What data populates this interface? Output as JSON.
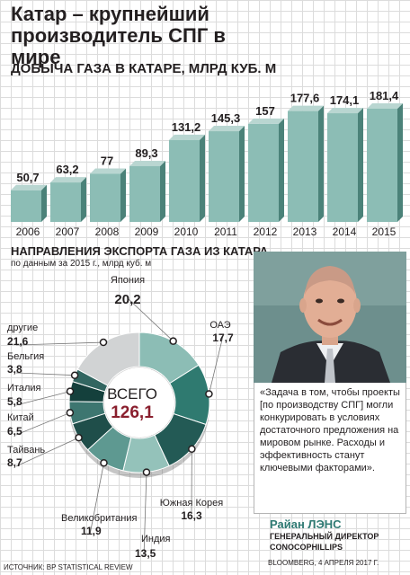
{
  "header": {
    "title": "Катар – крупнейший производитель СПГ в мире"
  },
  "production": {
    "subtitle": "ДОБЫЧА ГАЗА В КАТАРЕ, МЛРД КУБ. М"
  },
  "exports": {
    "subtitle": "НАПРАВЛЕНИЯ ЭКСПОРТА ГАЗА ИЗ КАТАРА",
    "note": "по данным за 2015 г., млрд куб. м"
  },
  "quote": {
    "text": "«Задача в том, чтобы проекты [по производству СПГ] могли конкурировать  в условиях достаточного предложения на мировом рынке. Расходы и эффективность станут ключевыми факторами».",
    "author_name": "Райан ЛЭНС",
    "author_position": "ГЕНЕРАЛЬНЫЙ ДИРЕКТОР",
    "author_org": "CONOCOPHILLIPS",
    "source": "BLOOMBERG, 4 АПРЕЛЯ 2017 Г."
  },
  "footer": {
    "source": "ИСТОЧНИК: BP STATISTICAL REVIEW"
  },
  "colors": {
    "bar": "#8cbdb5",
    "bar_top": "#b9d6d1",
    "bar_side": "#4b8279",
    "accent": "#2f7a73",
    "total": "#8a1f2e"
  },
  "chart_data": [
    {
      "type": "bar",
      "categories": [
        "2006",
        "2007",
        "2008",
        "2009",
        "2010",
        "2011",
        "2012",
        "2013",
        "2014",
        "2015"
      ],
      "values": [
        50.7,
        63.2,
        77,
        89.3,
        131.2,
        145.3,
        157,
        177.6,
        174.1,
        181.4
      ],
      "value_labels": [
        "50,7",
        "63,2",
        "77",
        "89,3",
        "131,2",
        "145,3",
        "157",
        "177,6",
        "174,1",
        "181,4"
      ],
      "title": "ДОБЫЧА ГАЗА В КАТАРЕ, МЛРД КУБ. М",
      "xlabel": "",
      "ylabel": "",
      "ylim": [
        0,
        190
      ],
      "grid": true
    },
    {
      "type": "pie",
      "title": "НАПРАВЛЕНИЯ ЭКСПОРТА ГАЗА ИЗ КАТАРА",
      "total_label": "ВСЕГО",
      "total_value_label": "126,1",
      "total": 126.1,
      "slices": [
        {
          "name": "Япония",
          "value": 20.2,
          "label": "20,2",
          "color": "#8cbdb5"
        },
        {
          "name": "ОАЭ",
          "value": 17.7,
          "label": "17,7",
          "color": "#2f7a70"
        },
        {
          "name": "Южная Корея",
          "value": 16.3,
          "label": "16,3",
          "color": "#235a55"
        },
        {
          "name": "Индия",
          "value": 13.5,
          "label": "13,5",
          "color": "#94c2ba"
        },
        {
          "name": "Великобритания",
          "value": 11.9,
          "label": "11,9",
          "color": "#5e9991"
        },
        {
          "name": "Тайвань",
          "value": 8.7,
          "label": "8,7",
          "color": "#1f4e4a"
        },
        {
          "name": "Китай",
          "value": 6.5,
          "label": "6,5",
          "color": "#3d7670"
        },
        {
          "name": "Италия",
          "value": 5.8,
          "label": "5,8",
          "color": "#14403c"
        },
        {
          "name": "Бельгия",
          "value": 3.8,
          "label": "3,8",
          "color": "#326661"
        },
        {
          "name": "другие",
          "value": 21.6,
          "label": "21,6",
          "color": "#d1d3d4"
        }
      ]
    }
  ]
}
